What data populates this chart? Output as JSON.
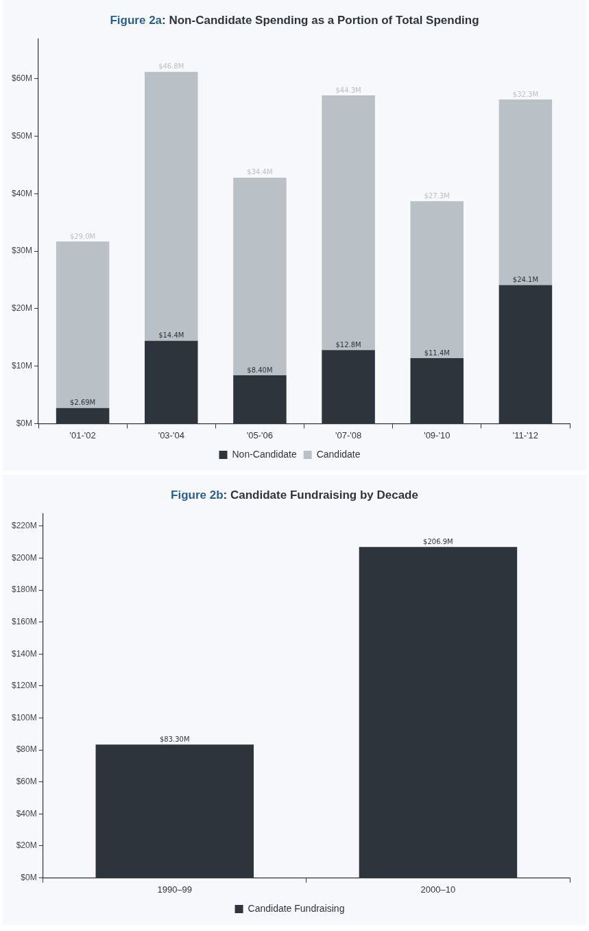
{
  "chart_data": [
    {
      "type": "bar",
      "title": "Figure 2a: Non-Candidate Spending as a Portion of Total Spending",
      "categories": [
        "'01-'02",
        "'03-'04",
        "'05-'06",
        "'07-'08",
        "'09-'10",
        "'11-'12"
      ],
      "stacked": true,
      "legend": "bottom",
      "ylim": [
        0,
        67
      ],
      "yticks": [
        {
          "value": 0,
          "label": "$0M"
        },
        {
          "value": 10,
          "label": "$10M"
        },
        {
          "value": 20,
          "label": "$20M"
        },
        {
          "value": 30,
          "label": "$30M"
        },
        {
          "value": 40,
          "label": "$40M"
        },
        {
          "value": 50,
          "label": "$50M"
        },
        {
          "value": 60,
          "label": "$60M"
        }
      ],
      "series": [
        {
          "name": "Non-Candidate",
          "color": "#2e343b",
          "values": [
            2.69,
            14.4,
            8.4,
            12.8,
            11.4,
            24.1
          ],
          "value_labels": [
            "$2.69M",
            "$14.4M",
            "$8.40M",
            "$12.8M",
            "$11.4M",
            "$24.1M"
          ]
        },
        {
          "name": "Candidate",
          "color": "#b9c0c6",
          "values": [
            29.0,
            46.8,
            34.4,
            44.3,
            27.3,
            32.3
          ],
          "value_labels": [
            "$29.0M",
            "$46.8M",
            "$34.4M",
            "$44.3M",
            "$27.3M",
            "$32.3M"
          ]
        }
      ]
    },
    {
      "type": "bar",
      "title": "Figure 2b: Candidate Fundraising by Decade",
      "categories": [
        "1990–99",
        "2000–10"
      ],
      "legend": "bottom",
      "ylim": [
        0,
        228
      ],
      "yticks": [
        {
          "value": 0,
          "label": "$0M"
        },
        {
          "value": 20,
          "label": "$20M"
        },
        {
          "value": 40,
          "label": "$40M"
        },
        {
          "value": 60,
          "label": "$60M"
        },
        {
          "value": 80,
          "label": "$80M"
        },
        {
          "value": 100,
          "label": "$100M"
        },
        {
          "value": 120,
          "label": "$120M"
        },
        {
          "value": 140,
          "label": "$140M"
        },
        {
          "value": 160,
          "label": "$160M"
        },
        {
          "value": 180,
          "label": "$180M"
        },
        {
          "value": 200,
          "label": "$200M"
        },
        {
          "value": 220,
          "label": "$220M"
        }
      ],
      "series": [
        {
          "name": "Candidate Fundraising",
          "color": "#2e343b",
          "values": [
            83.3,
            206.9
          ],
          "value_labels": [
            "$83.30M",
            "$206.9M"
          ]
        }
      ]
    }
  ]
}
